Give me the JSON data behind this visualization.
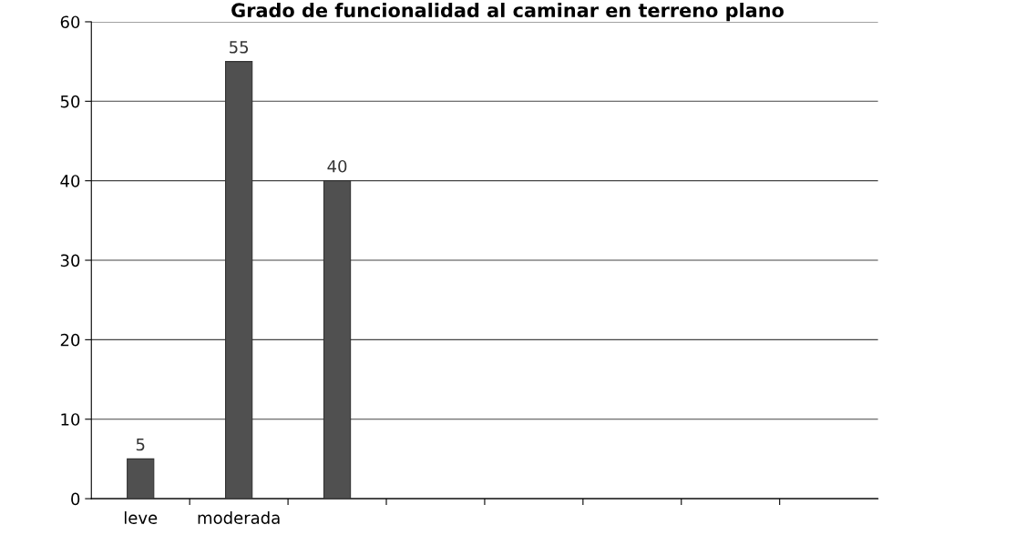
{
  "chart_data": {
    "type": "bar",
    "title": "Grado de funcionalidad al caminar en terreno plano",
    "categories": [
      "leve",
      "moderada",
      null,
      null,
      null,
      null,
      null,
      null
    ],
    "values": [
      5,
      55,
      40,
      null,
      null,
      null,
      null,
      null
    ],
    "color": "#505050",
    "ylim": [
      0,
      60
    ],
    "yticks": [
      0,
      10,
      20,
      30,
      40,
      50,
      60
    ],
    "grid": "y",
    "data_labels": true,
    "legend": false
  }
}
